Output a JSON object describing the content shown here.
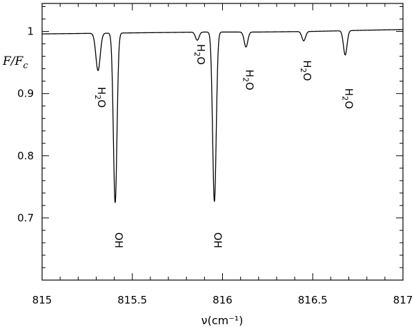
{
  "chart_data": {
    "type": "line",
    "title": "",
    "xlabel": "ν(cm⁻¹)",
    "ylabel": "F/F",
    "ylabel_subscript": "c",
    "xlim": [
      815,
      817
    ],
    "ylim": [
      0.6,
      1.045
    ],
    "x_ticks": [
      815,
      815.5,
      816,
      816.5,
      817
    ],
    "x_tick_labels": [
      "815",
      "815.5",
      "816",
      "816.5",
      "817"
    ],
    "y_ticks": [
      0.7,
      0.8,
      0.9,
      1.0
    ],
    "y_tick_labels": [
      "0.7",
      "0.8",
      "0.9",
      "1"
    ],
    "grid": false,
    "legend": "none",
    "line_color": "#000000",
    "series": [
      {
        "continuum": [
          [
            815,
            0.996
          ],
          [
            815.3,
            0.997
          ],
          [
            815.6,
            0.998
          ],
          [
            815.9,
            0.999
          ],
          [
            816.2,
            0.999
          ],
          [
            816.5,
            1.0
          ],
          [
            816.8,
            1.002
          ],
          [
            817,
            1.003
          ]
        ],
        "lines": [
          {
            "center": 815.31,
            "depth": 0.06,
            "width": 0.012
          },
          {
            "center": 815.405,
            "depth": 0.273,
            "width": 0.01
          },
          {
            "center": 815.86,
            "depth": 0.013,
            "width": 0.01
          },
          {
            "center": 815.955,
            "depth": 0.273,
            "width": 0.01
          },
          {
            "center": 816.13,
            "depth": 0.024,
            "width": 0.01
          },
          {
            "center": 816.45,
            "depth": 0.015,
            "width": 0.01
          },
          {
            "center": 816.68,
            "depth": 0.039,
            "width": 0.01
          }
        ]
      }
    ],
    "annotations": [
      {
        "label": "H2O",
        "main": "H",
        "sub": "2",
        "rest": "O",
        "x": 815.31,
        "y": 0.894
      },
      {
        "label": "OH",
        "main": "OH",
        "sub": "",
        "rest": "",
        "x": 815.405,
        "y": 0.664
      },
      {
        "label": "H2O",
        "main": "H",
        "sub": "2",
        "rest": "O",
        "x": 815.86,
        "y": 0.963
      },
      {
        "label": "OH",
        "main": "OH",
        "sub": "",
        "rest": "",
        "x": 815.955,
        "y": 0.664
      },
      {
        "label": "H2O",
        "main": "H",
        "sub": "2",
        "rest": "O",
        "x": 816.13,
        "y": 0.922
      },
      {
        "label": "H2O",
        "main": "H",
        "sub": "2",
        "rest": "O",
        "x": 816.45,
        "y": 0.937
      },
      {
        "label": "H2O",
        "main": "H",
        "sub": "2",
        "rest": "O",
        "x": 816.68,
        "y": 0.892
      }
    ]
  }
}
